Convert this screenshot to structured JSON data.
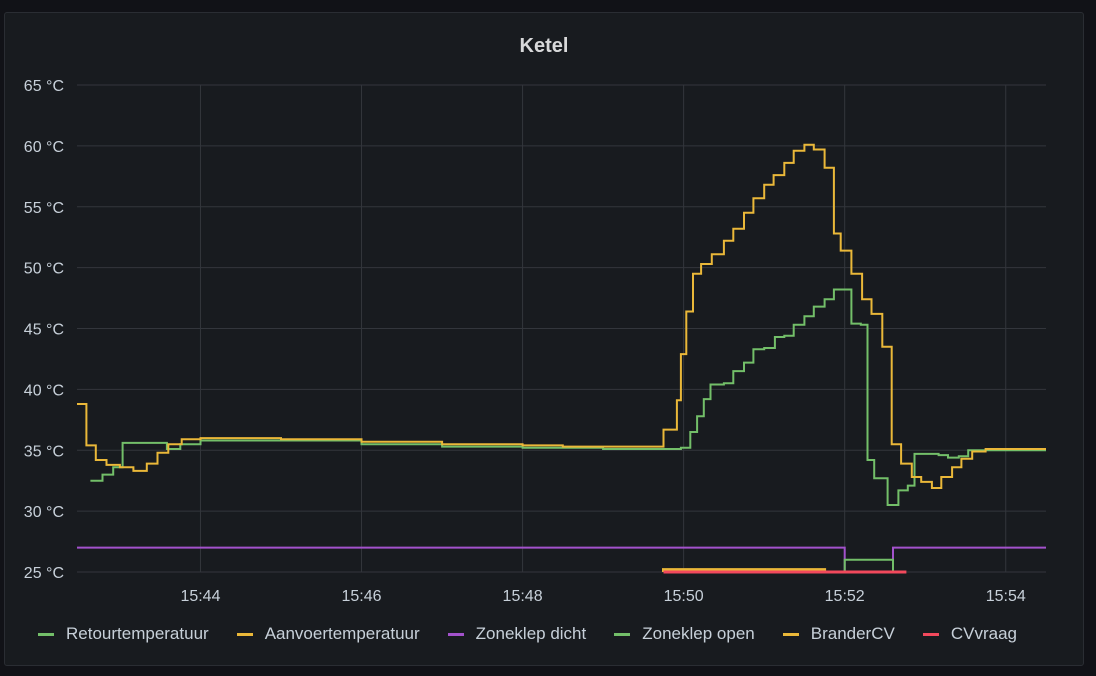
{
  "chart_data": {
    "type": "line",
    "title": "Ketel",
    "y_unit": "°C",
    "ylim": [
      25,
      65
    ],
    "yticks": [
      "65 °C",
      "60 °C",
      "55 °C",
      "50 °C",
      "45 °C",
      "40 °C",
      "35 °C",
      "30 °C",
      "25 °C"
    ],
    "ytick_values": [
      65,
      60,
      55,
      50,
      45,
      40,
      35,
      30,
      25
    ],
    "xlim": [
      "15:42:28",
      "15:54:30"
    ],
    "xticks": [
      "15:44",
      "15:46",
      "15:48",
      "15:50",
      "15:52",
      "15:54"
    ],
    "grid": true,
    "legend_position": "bottom",
    "series": [
      {
        "name": "Retourtemperatuur",
        "color": "#73bf69",
        "step": true,
        "points": [
          [
            "15:42:38",
            32.5
          ],
          [
            "15:42:47",
            33.0
          ],
          [
            "15:42:55",
            33.6
          ],
          [
            "15:43:02",
            35.6
          ],
          [
            "15:43:35",
            35.1
          ],
          [
            "15:43:45",
            35.5
          ],
          [
            "15:44:00",
            35.8
          ],
          [
            "15:46:00",
            35.5
          ],
          [
            "15:47:00",
            35.3
          ],
          [
            "15:48:00",
            35.2
          ],
          [
            "15:49:00",
            35.1
          ],
          [
            "15:49:45",
            35.1
          ],
          [
            "15:49:58",
            35.2
          ],
          [
            "15:50:02",
            35.2
          ],
          [
            "15:50:05",
            36.5
          ],
          [
            "15:50:10",
            37.8
          ],
          [
            "15:50:15",
            39.2
          ],
          [
            "15:50:20",
            40.4
          ],
          [
            "15:50:30",
            40.5
          ],
          [
            "15:50:37",
            41.5
          ],
          [
            "15:50:45",
            42.2
          ],
          [
            "15:50:52",
            43.3
          ],
          [
            "15:51:00",
            43.4
          ],
          [
            "15:51:08",
            44.3
          ],
          [
            "15:51:15",
            44.4
          ],
          [
            "15:51:22",
            45.3
          ],
          [
            "15:51:30",
            46.0
          ],
          [
            "15:51:37",
            46.8
          ],
          [
            "15:51:45",
            47.4
          ],
          [
            "15:51:52",
            48.2
          ],
          [
            "15:52:00",
            48.2
          ],
          [
            "15:52:05",
            45.4
          ],
          [
            "15:52:12",
            45.3
          ],
          [
            "15:52:17",
            34.2
          ],
          [
            "15:52:22",
            32.7
          ],
          [
            "15:52:32",
            30.5
          ],
          [
            "15:52:40",
            31.7
          ],
          [
            "15:52:47",
            32.1
          ],
          [
            "15:52:52",
            34.7
          ],
          [
            "15:53:10",
            34.6
          ],
          [
            "15:53:17",
            34.4
          ],
          [
            "15:53:25",
            34.5
          ],
          [
            "15:53:32",
            35.0
          ],
          [
            "15:54:30",
            35.0
          ]
        ]
      },
      {
        "name": "Aanvoertemperatuur",
        "color": "#eab839",
        "step": true,
        "points": [
          [
            "15:42:28",
            38.8
          ],
          [
            "15:42:35",
            35.4
          ],
          [
            "15:42:42",
            34.2
          ],
          [
            "15:42:50",
            33.8
          ],
          [
            "15:43:00",
            33.6
          ],
          [
            "15:43:10",
            33.3
          ],
          [
            "15:43:20",
            33.9
          ],
          [
            "15:43:28",
            34.8
          ],
          [
            "15:43:36",
            35.5
          ],
          [
            "15:43:46",
            35.9
          ],
          [
            "15:44:00",
            36.0
          ],
          [
            "15:45:00",
            35.9
          ],
          [
            "15:46:00",
            35.7
          ],
          [
            "15:47:00",
            35.5
          ],
          [
            "15:48:00",
            35.4
          ],
          [
            "15:48:30",
            35.3
          ],
          [
            "15:49:00",
            35.3
          ],
          [
            "15:49:30",
            35.3
          ],
          [
            "15:49:45",
            36.7
          ],
          [
            "15:49:55",
            39.1
          ],
          [
            "15:49:58",
            42.9
          ],
          [
            "15:50:02",
            46.4
          ],
          [
            "15:50:07",
            49.5
          ],
          [
            "15:50:13",
            50.3
          ],
          [
            "15:50:21",
            51.1
          ],
          [
            "15:50:30",
            52.2
          ],
          [
            "15:50:37",
            53.2
          ],
          [
            "15:50:45",
            54.5
          ],
          [
            "15:50:52",
            55.7
          ],
          [
            "15:51:00",
            56.8
          ],
          [
            "15:51:07",
            57.6
          ],
          [
            "15:51:15",
            58.6
          ],
          [
            "15:51:22",
            59.6
          ],
          [
            "15:51:30",
            60.1
          ],
          [
            "15:51:37",
            59.7
          ],
          [
            "15:51:45",
            58.2
          ],
          [
            "15:51:52",
            52.8
          ],
          [
            "15:51:57",
            51.4
          ],
          [
            "15:52:05",
            49.5
          ],
          [
            "15:52:13",
            47.4
          ],
          [
            "15:52:20",
            46.2
          ],
          [
            "15:52:28",
            43.5
          ],
          [
            "15:52:35",
            35.5
          ],
          [
            "15:52:42",
            33.9
          ],
          [
            "15:52:50",
            32.8
          ],
          [
            "15:52:57",
            32.4
          ],
          [
            "15:53:05",
            31.9
          ],
          [
            "15:53:12",
            32.8
          ],
          [
            "15:53:20",
            33.6
          ],
          [
            "15:53:27",
            34.3
          ],
          [
            "15:53:35",
            34.9
          ],
          [
            "15:53:45",
            35.1
          ],
          [
            "15:54:30",
            35.1
          ]
        ]
      },
      {
        "name": "Zoneklep dicht",
        "color": "#a352cc",
        "step": true,
        "points": [
          [
            "15:42:28",
            27.0
          ],
          [
            "15:52:00",
            27.0
          ],
          [
            "15:52:00",
            25.0
          ],
          [
            "15:52:36",
            25.0
          ],
          [
            "15:52:36",
            27.0
          ],
          [
            "15:54:30",
            27.0
          ]
        ]
      },
      {
        "name": "Zoneklep open",
        "color": "#73bf69",
        "step": true,
        "points": [
          [
            "15:52:00",
            25.0
          ],
          [
            "15:52:00",
            26.0
          ],
          [
            "15:52:36",
            26.0
          ],
          [
            "15:52:36",
            25.0
          ]
        ]
      },
      {
        "name": "BranderCV",
        "color": "#eab839",
        "step": true,
        "points": [
          [
            "15:49:45",
            25.0
          ],
          [
            "15:49:45",
            25.2
          ],
          [
            "15:51:45",
            25.2
          ],
          [
            "15:51:45",
            25.0
          ]
        ]
      },
      {
        "name": "CVvraag",
        "color": "#f2495c",
        "step": true,
        "points": [
          [
            "15:49:45",
            25.0
          ],
          [
            "15:52:46",
            25.0
          ]
        ]
      }
    ]
  }
}
